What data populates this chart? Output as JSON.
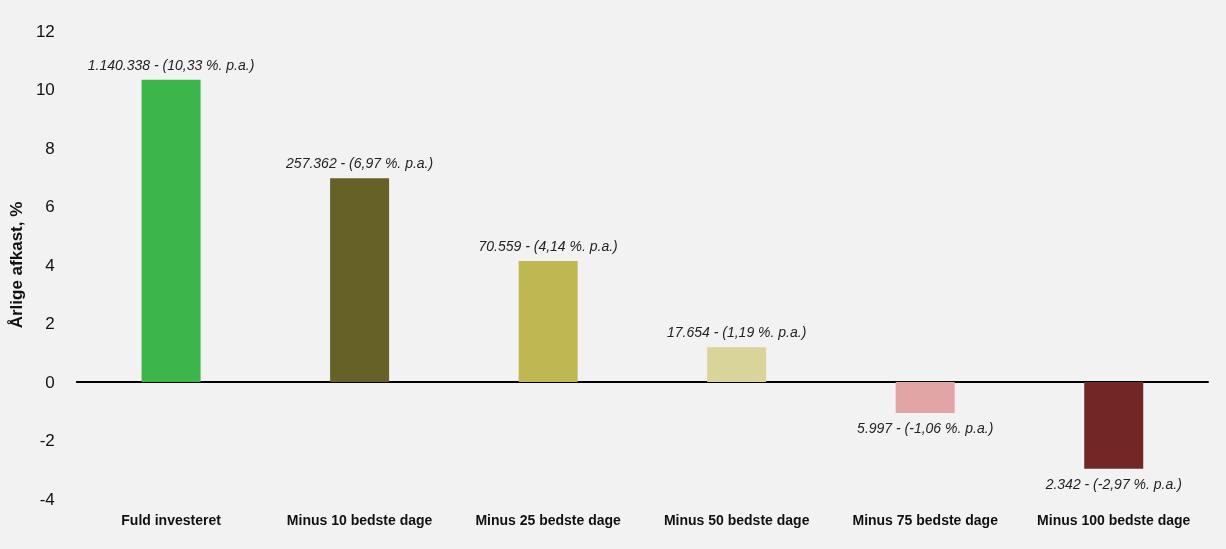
{
  "chart_data": {
    "type": "bar",
    "ylabel": "Årlige afkast, %",
    "categories": [
      "Fuld investeret",
      "Minus 10 bedste dage",
      "Minus 25 bedste dage",
      "Minus 50 bedste dage",
      "Minus 75 bedste dage",
      "Minus 100 bedste dage"
    ],
    "values": [
      10.33,
      6.97,
      4.14,
      1.19,
      -1.06,
      -2.97
    ],
    "colors": [
      "#3cb54a",
      "#656127",
      "#bfb751",
      "#d9d59a",
      "#e2a5a5",
      "#722626"
    ],
    "value_labels": [
      "1.140.338 - (10,33 %. p.a.)",
      "257.362 - (6,97 %. p.a.)",
      "70.559 - (4,14 %. p.a.)",
      "17.654 - (1,19 %. p.a.)",
      "5.997 - (-1,06 %. p.a.)",
      "2.342 - (-2,97 %. p.a.)"
    ],
    "ylim": [
      -4,
      12
    ],
    "yticks": [
      -4,
      -2,
      0,
      2,
      4,
      6,
      8,
      10,
      12
    ]
  }
}
